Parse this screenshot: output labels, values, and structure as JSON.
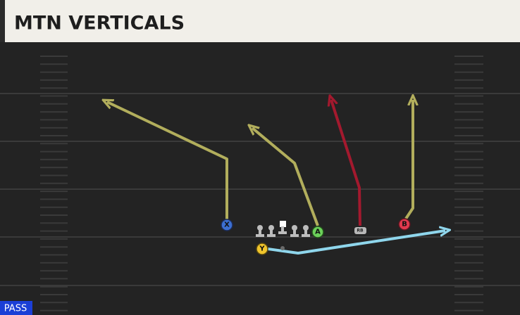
{
  "header": {
    "title": "MTN VERTICALS"
  },
  "players": [
    {
      "label": "X"
    },
    {
      "label": "A"
    },
    {
      "label": "RB"
    },
    {
      "label": "B"
    },
    {
      "label": "Y"
    }
  ],
  "footer": {
    "mode": "PASS"
  }
}
